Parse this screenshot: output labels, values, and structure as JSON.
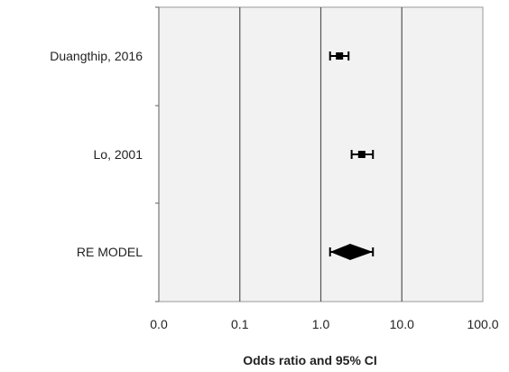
{
  "chart_data": {
    "type": "forest",
    "title": "",
    "xlabel": "Odds ratio and 95% CI",
    "ylabel": "",
    "x_scale": "log10",
    "xlim": [
      0.01,
      100
    ],
    "x_ticks": [
      0.01,
      0.1,
      1,
      10,
      100
    ],
    "x_tick_labels": [
      "0.0",
      "0.1",
      "1.0",
      "10.0",
      "100.0"
    ],
    "grid": "vertical",
    "legend": "none",
    "studies": [
      {
        "label": "Duangthip, 2016",
        "or": 1.7,
        "lower": 1.3,
        "upper": 2.2,
        "marker": "square"
      },
      {
        "label": "Lo, 2001",
        "or": 3.2,
        "lower": 2.4,
        "upper": 4.4,
        "marker": "square"
      },
      {
        "label": "RE MODEL",
        "or": 2.3,
        "lower": 1.3,
        "upper": 4.4,
        "marker": "diamond"
      }
    ],
    "colors": {
      "plot_bg": "#f2f2f2",
      "grid": "#555555",
      "marker": "#000000"
    }
  }
}
